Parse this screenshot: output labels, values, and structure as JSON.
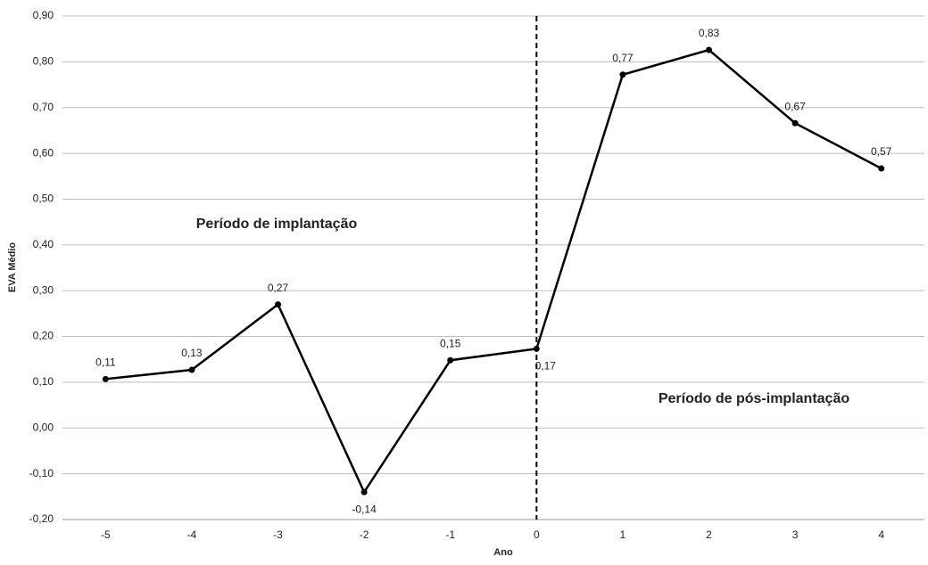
{
  "chart_data": {
    "type": "line",
    "x_label": "Ano",
    "y_label": "EVA Médio",
    "annotations": [
      "Período de implantação",
      "Período de pós-implantação"
    ],
    "categories": [
      "-5",
      "-4",
      "-3",
      "-2",
      "-1",
      "0",
      "1",
      "2",
      "3",
      "4"
    ],
    "values": [
      0.107,
      0.127,
      0.27,
      -0.14,
      0.148,
      0.173,
      0.772,
      0.826,
      0.666,
      0.567
    ],
    "value_labels": [
      "0,11",
      "0,13",
      "0,27",
      "-0,14",
      "0,15",
      "0,17",
      "0,77",
      "0,83",
      "0,67",
      "0,57"
    ],
    "color": "#000000",
    "vline_category": "0",
    "ylim": [
      -0.2,
      0.9
    ],
    "yticks": [
      {
        "value": -0.2,
        "label": "-0,20"
      },
      {
        "value": -0.1,
        "label": "-0,10"
      },
      {
        "value": 0,
        "label": "0,00"
      },
      {
        "value": 0.1,
        "label": "0,10"
      },
      {
        "value": 0.2,
        "label": "0,20"
      },
      {
        "value": 0.3,
        "label": "0,30"
      },
      {
        "value": 0.4,
        "label": "0,40"
      },
      {
        "value": 0.5,
        "label": "0,50"
      },
      {
        "value": 0.6,
        "label": "0,60"
      },
      {
        "value": 0.7,
        "label": "0,70"
      },
      {
        "value": 0.8,
        "label": "0,80"
      },
      {
        "value": 0.9,
        "label": "0,90"
      }
    ],
    "grid": true
  }
}
